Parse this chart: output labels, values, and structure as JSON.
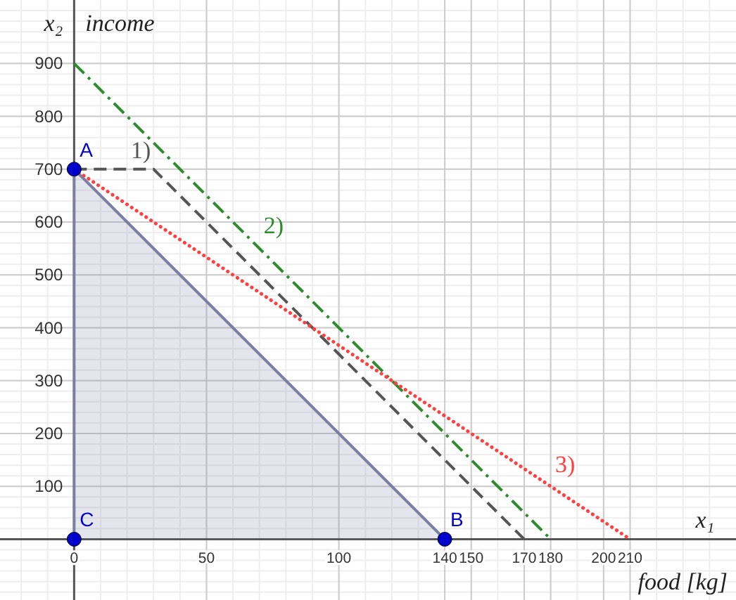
{
  "chart_data": {
    "type": "line",
    "xlabel": "food [kg]",
    "ylabel": "income",
    "xlim": [
      -28,
      250
    ],
    "ylim": [
      -115,
      1020
    ],
    "xticks": [
      0,
      50,
      100,
      140,
      150,
      170,
      180,
      200,
      210
    ],
    "yticks": [
      100,
      200,
      300,
      400,
      500,
      600,
      700,
      800,
      900
    ],
    "grid": true,
    "series": [
      {
        "type": "area",
        "color": "#7b7fa6",
        "x": [
          0,
          0,
          140
        ],
        "values": [
          0,
          700,
          0
        ]
      },
      {
        "name": "1)",
        "color": "#555555",
        "line_style": "dashed",
        "x": [
          0,
          30,
          170
        ],
        "values": [
          700,
          700,
          0
        ]
      },
      {
        "name": "2)",
        "color": "#2e8b2e",
        "line_style": "dashdot",
        "x": [
          0,
          180
        ],
        "values": [
          900,
          0
        ]
      },
      {
        "name": "3)",
        "color": "#ff4040",
        "line_style": "dotted",
        "x": [
          0,
          210
        ],
        "values": [
          700,
          0
        ]
      },
      {
        "type": "scatter",
        "color": "#0000cc",
        "marker": "circle",
        "x": [
          0,
          140,
          0
        ],
        "values": [
          700,
          0,
          0
        ],
        "value_labels": [
          "A",
          "B",
          "C"
        ]
      }
    ],
    "annotations": [
      "x₂",
      "x₁"
    ]
  }
}
